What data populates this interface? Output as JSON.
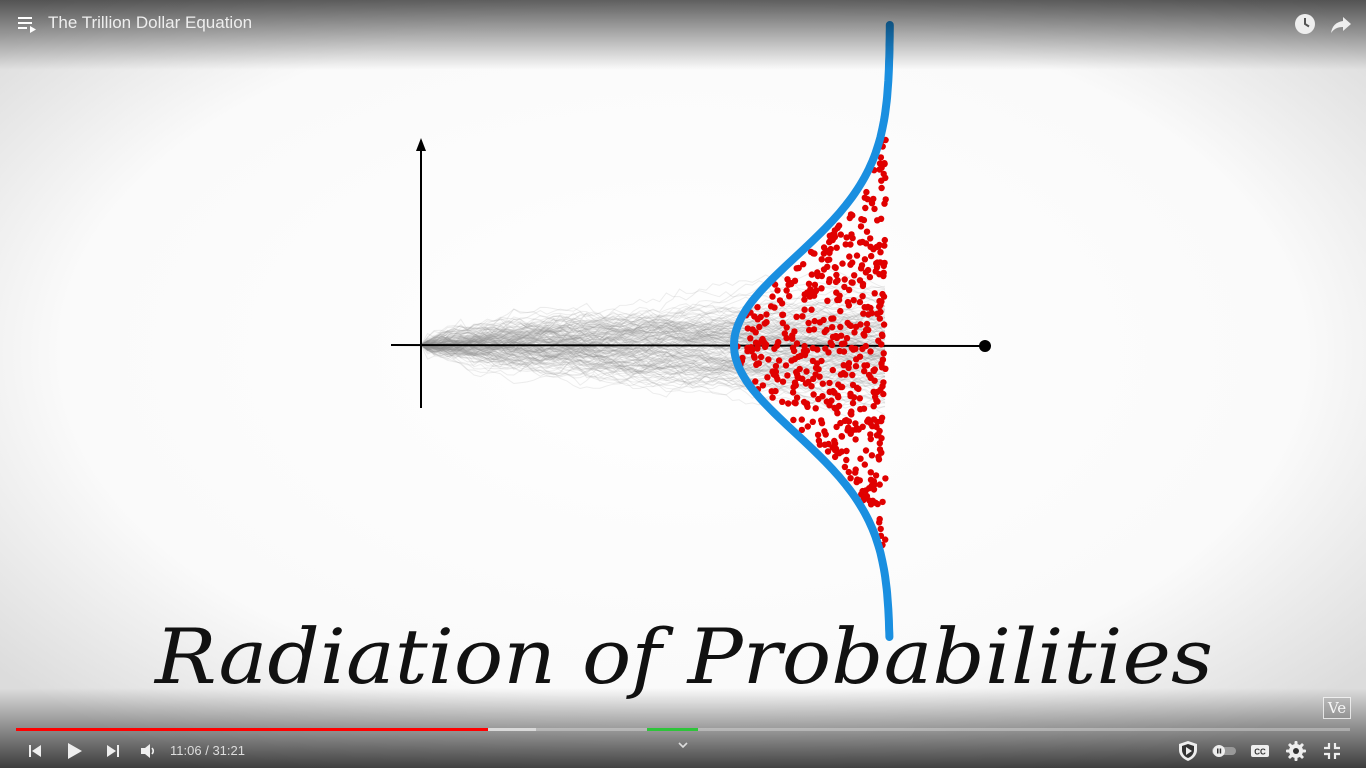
{
  "header": {
    "title": "The Trillion Dollar Equation",
    "icons": [
      "playlist-icon",
      "watch-later-icon",
      "share-icon"
    ]
  },
  "video": {
    "caption": "Radiation of Probabilities",
    "colors": {
      "curve": "#1a8fe0",
      "dots": "#e00000",
      "paths": "#8c8c8c",
      "axes": "#000000"
    }
  },
  "player": {
    "current_time": "11:06",
    "duration": "31:21",
    "time_display": "11:06 / 31:21",
    "progress_fraction": 0.354,
    "buffered_fraction": 0.39,
    "chapter_marker_fraction": 0.473,
    "accent": "#ff0000",
    "watermark": "Ve",
    "controls_icons": [
      "previous-icon",
      "play-icon",
      "next-icon",
      "volume-icon",
      "chevron-up-icon",
      "sponsor-shield-icon",
      "autoplay-toggle-icon",
      "captions-icon",
      "settings-gear-icon",
      "exit-fullscreen-icon"
    ]
  }
}
